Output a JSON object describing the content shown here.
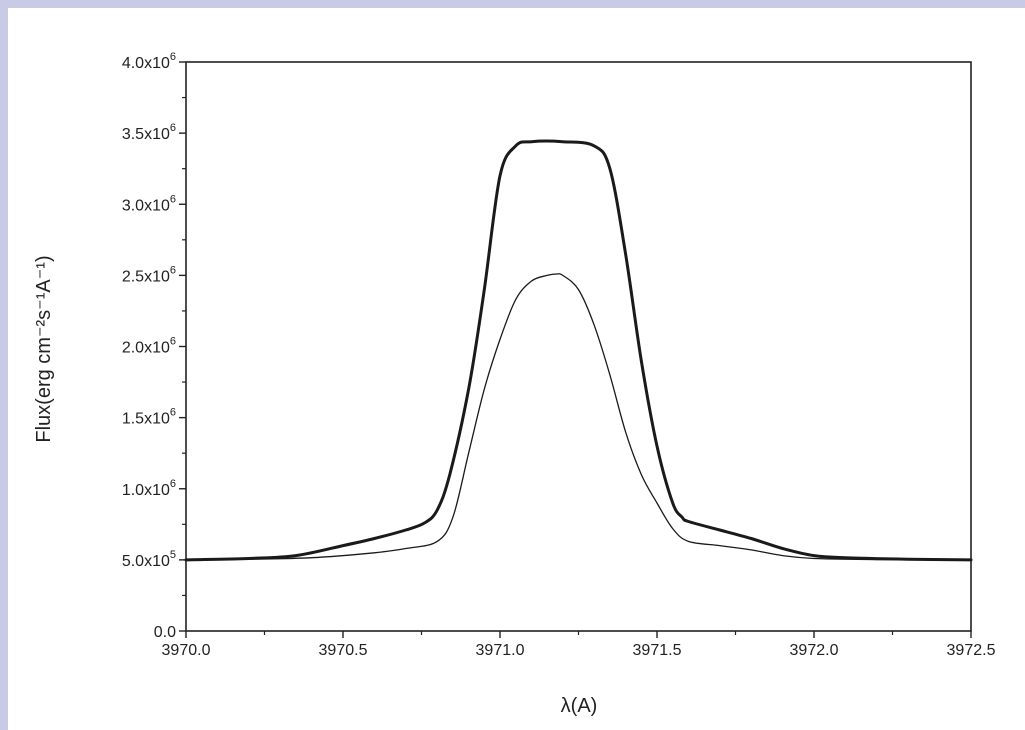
{
  "chart_data": {
    "type": "line",
    "title": "",
    "xlabel": "λ(A)",
    "ylabel": "Flux(erg cm⁻²s⁻¹A⁻¹)",
    "xlim": [
      3970.0,
      3972.5
    ],
    "ylim": [
      0,
      4000000
    ],
    "x_ticks": [
      {
        "value": 3970.0,
        "label": "3970.0"
      },
      {
        "value": 3970.5,
        "label": "3970.5"
      },
      {
        "value": 3971.0,
        "label": "3971.0"
      },
      {
        "value": 3971.5,
        "label": "3971.5"
      },
      {
        "value": 3972.0,
        "label": "3972.0"
      },
      {
        "value": 3972.5,
        "label": "3972.5"
      }
    ],
    "y_ticks": [
      {
        "value": 0,
        "mantissa": "0.0",
        "exponent": ""
      },
      {
        "value": 500000,
        "mantissa": "5.0x10",
        "exponent": "5"
      },
      {
        "value": 1000000,
        "mantissa": "1.0x10",
        "exponent": "6"
      },
      {
        "value": 1500000,
        "mantissa": "1.5x10",
        "exponent": "6"
      },
      {
        "value": 2000000,
        "mantissa": "2.0x10",
        "exponent": "6"
      },
      {
        "value": 2500000,
        "mantissa": "2.5x10",
        "exponent": "6"
      },
      {
        "value": 3000000,
        "mantissa": "3.0x10",
        "exponent": "6"
      },
      {
        "value": 3500000,
        "mantissa": "3.5x10",
        "exponent": "6"
      },
      {
        "value": 4000000,
        "mantissa": "4.0x10",
        "exponent": "6"
      }
    ],
    "grid": false,
    "series": [
      {
        "color": "#1a1a1a",
        "style": "thick",
        "x": [
          3970.0,
          3970.2,
          3970.35,
          3970.5,
          3970.6,
          3970.7,
          3970.76,
          3970.8,
          3970.84,
          3970.9,
          3970.95,
          3971.0,
          3971.05,
          3971.1,
          3971.2,
          3971.3,
          3971.35,
          3971.4,
          3971.45,
          3971.5,
          3971.55,
          3971.58,
          3971.6,
          3971.7,
          3971.8,
          3971.9,
          3972.0,
          3972.1,
          3972.3,
          3972.5
        ],
        "y": [
          500000,
          510000,
          530000,
          600000,
          650000,
          710000,
          760000,
          850000,
          1100000,
          1700000,
          2400000,
          3200000,
          3410000,
          3440000,
          3440000,
          3410000,
          3250000,
          2650000,
          1900000,
          1300000,
          900000,
          800000,
          770000,
          710000,
          650000,
          580000,
          530000,
          515000,
          505000,
          500000
        ]
      },
      {
        "color": "#1a1a1a",
        "style": "thin",
        "x": [
          3970.0,
          3970.2,
          3970.4,
          3970.6,
          3970.7,
          3970.8,
          3970.85,
          3970.9,
          3970.95,
          3971.0,
          3971.05,
          3971.1,
          3971.15,
          3971.18,
          3971.2,
          3971.25,
          3971.3,
          3971.35,
          3971.4,
          3971.45,
          3971.5,
          3971.55,
          3971.6,
          3971.7,
          3971.8,
          3971.9,
          3972.0,
          3972.2,
          3972.5
        ],
        "y": [
          500000,
          505000,
          515000,
          550000,
          580000,
          630000,
          800000,
          1250000,
          1700000,
          2050000,
          2330000,
          2460000,
          2500000,
          2510000,
          2500000,
          2400000,
          2150000,
          1800000,
          1400000,
          1100000,
          900000,
          720000,
          630000,
          600000,
          570000,
          530000,
          510000,
          502000,
          500000
        ]
      }
    ]
  }
}
